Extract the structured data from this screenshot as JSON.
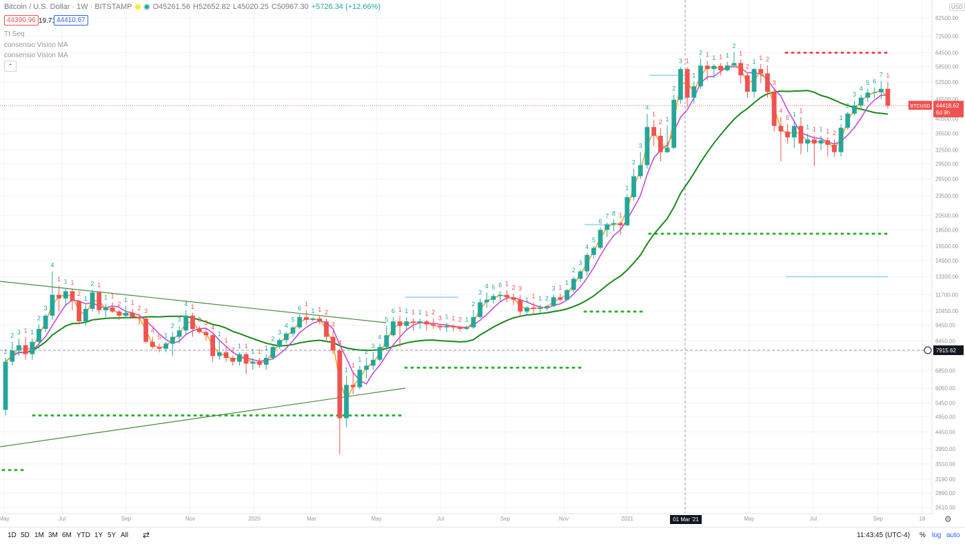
{
  "header": {
    "symbol_title": "Bitcoin / U.S. Dollar · 1W · BITSTAMP",
    "open": "O45261.56",
    "high": "H52652.82",
    "low": "L45020.25",
    "close": "C50967.30",
    "change": "+5726.34 (+12.66%)",
    "bid": "44390.96",
    "spread": "19.71",
    "ask": "44410.67",
    "indicators": [
      "TI Seq",
      "consensio Vision MA",
      "consensio Vision MA"
    ],
    "collapse_glyph": "⌃"
  },
  "price_scale": {
    "currency": "USD",
    "labels": [
      "82500.00",
      "72500.00",
      "64500.00",
      "58500.00",
      "52500.00",
      "46500.00",
      "40500.00",
      "36500.00",
      "32500.00",
      "29500.00",
      "26500.00",
      "23500.00",
      "20500.00",
      "18500.00",
      "16500.00",
      "14900.00",
      "13300.00",
      "11700.00",
      "10450.00",
      "9450.00",
      "8450.00",
      "7850.00",
      "6850.00",
      "6050.00",
      "5450.00",
      "4950.00",
      "4450.00",
      "3950.00",
      "3550.00",
      "3190.00",
      "2890.00",
      "2610.00"
    ],
    "last_price_badge": {
      "symbol": "BTCUSD",
      "price": "44418.62",
      "countdown": "6d 9h"
    },
    "crosshair_price": "7915.62"
  },
  "time_scale": {
    "labels": [
      "May",
      "Jul",
      "Sep",
      "Nov",
      "2020",
      "Mar",
      "May",
      "Jul",
      "Sep",
      "Nov",
      "2021",
      "May",
      "Jul",
      "Sep",
      "18"
    ],
    "crosshair_date": "01 Mar '21"
  },
  "toolbar": {
    "ranges": [
      "1D",
      "5D",
      "1M",
      "3M",
      "6M",
      "YTD",
      "1Y",
      "5Y",
      "All"
    ],
    "clock": "11:43:45 (UTC-4)",
    "percent": "%",
    "log": "log",
    "auto": "auto"
  },
  "chart_data": {
    "type": "candlestick",
    "symbol": "BTCUSD",
    "interval": "1W",
    "y_scale": "log",
    "ylim": [
      2500,
      90000
    ],
    "candles": [
      [
        5200,
        7500,
        5000,
        7300
      ],
      [
        7300,
        8400,
        7100,
        7900
      ],
      [
        7900,
        8600,
        7600,
        8200
      ],
      [
        8200,
        8700,
        7400,
        7700
      ],
      [
        7700,
        8600,
        7400,
        8400
      ],
      [
        8400,
        9500,
        8000,
        9200
      ],
      [
        9200,
        10200,
        9000,
        10100
      ],
      [
        10100,
        13800,
        9800,
        11700
      ],
      [
        11700,
        12500,
        10400,
        11400
      ],
      [
        11400,
        12300,
        10800,
        12000
      ],
      [
        12000,
        12200,
        10500,
        11200
      ],
      [
        11200,
        11300,
        9500,
        9700
      ],
      [
        9700,
        10900,
        9400,
        10600
      ],
      [
        10600,
        12100,
        10400,
        11900
      ],
      [
        11900,
        12000,
        10200,
        10500
      ],
      [
        10500,
        11000,
        10000,
        10700
      ],
      [
        10700,
        11100,
        10300,
        10400
      ],
      [
        10400,
        10500,
        9800,
        10100
      ],
      [
        10100,
        10800,
        9900,
        10300
      ],
      [
        10300,
        10600,
        9900,
        10000
      ],
      [
        10000,
        10200,
        9500,
        9900
      ],
      [
        9900,
        10000,
        8300,
        8400
      ],
      [
        8400,
        8700,
        8000,
        8100
      ],
      [
        8100,
        8300,
        7800,
        8000
      ],
      [
        8000,
        8400,
        7800,
        8300
      ],
      [
        8300,
        9000,
        7600,
        8700
      ],
      [
        8700,
        9400,
        8300,
        9100
      ],
      [
        9100,
        10500,
        8800,
        10100
      ],
      [
        10100,
        10300,
        8700,
        9200
      ],
      [
        9200,
        9400,
        8900,
        9000
      ],
      [
        9000,
        9200,
        8500,
        8800
      ],
      [
        8800,
        8900,
        7300,
        7600
      ],
      [
        7600,
        8500,
        7400,
        7800
      ],
      [
        7800,
        8100,
        7300,
        7500
      ],
      [
        7500,
        7600,
        7100,
        7300
      ],
      [
        7300,
        7800,
        7100,
        7700
      ],
      [
        7700,
        7800,
        6700,
        7200
      ],
      [
        7200,
        7500,
        6900,
        7300
      ],
      [
        7300,
        7500,
        7000,
        7150
      ],
      [
        7150,
        7700,
        6900,
        7500
      ],
      [
        7500,
        8200,
        7400,
        8100
      ],
      [
        8100,
        8600,
        8000,
        8500
      ],
      [
        8500,
        9000,
        8300,
        8900
      ],
      [
        8900,
        9400,
        8700,
        9300
      ],
      [
        9300,
        10200,
        9200,
        10000
      ],
      [
        10000,
        10500,
        9500,
        9800
      ],
      [
        9800,
        10000,
        9700,
        9900
      ],
      [
        9900,
        10100,
        9500,
        9700
      ],
      [
        9700,
        9900,
        8500,
        8700
      ],
      [
        8700,
        9100,
        7700,
        7900
      ],
      [
        7900,
        8000,
        3800,
        4900
      ],
      [
        4900,
        6600,
        4600,
        6200
      ],
      [
        6200,
        6800,
        5800,
        6100
      ],
      [
        6100,
        7100,
        6000,
        6900
      ],
      [
        6900,
        7500,
        6500,
        7100
      ],
      [
        7100,
        7800,
        6900,
        7400
      ],
      [
        7400,
        8300,
        7300,
        8100
      ],
      [
        8100,
        9400,
        8000,
        8800
      ],
      [
        8800,
        10000,
        8700,
        9700
      ],
      [
        9700,
        10100,
        8100,
        9400
      ],
      [
        9400,
        10000,
        9100,
        9700
      ],
      [
        9700,
        9900,
        9100,
        9600
      ],
      [
        9600,
        9900,
        9200,
        9700
      ],
      [
        9700,
        9800,
        9100,
        9500
      ],
      [
        9500,
        9900,
        9200,
        9400
      ],
      [
        9400,
        9500,
        9100,
        9300
      ],
      [
        9300,
        9600,
        9000,
        9400
      ],
      [
        9400,
        9500,
        9050,
        9300
      ],
      [
        9300,
        9400,
        9050,
        9200
      ],
      [
        9200,
        9400,
        9100,
        9300
      ],
      [
        9300,
        10500,
        9200,
        10000
      ],
      [
        10000,
        11400,
        9900,
        11100
      ],
      [
        11100,
        11900,
        10700,
        11300
      ],
      [
        11300,
        11800,
        11000,
        11600
      ],
      [
        11600,
        12000,
        11200,
        11700
      ],
      [
        11700,
        12100,
        11100,
        11500
      ],
      [
        11500,
        11800,
        10900,
        11300
      ],
      [
        11300,
        11700,
        10000,
        10400
      ],
      [
        10400,
        10800,
        10100,
        10700
      ],
      [
        10700,
        11100,
        10200,
        10600
      ],
      [
        10600,
        10900,
        10300,
        10700
      ],
      [
        10700,
        10900,
        10500,
        10800
      ],
      [
        10800,
        11700,
        10700,
        11500
      ],
      [
        11500,
        11800,
        11200,
        11300
      ],
      [
        11300,
        12200,
        11200,
        12100
      ],
      [
        12100,
        13300,
        11900,
        13100
      ],
      [
        13100,
        14000,
        12800,
        13800
      ],
      [
        13800,
        15700,
        13400,
        15500
      ],
      [
        15500,
        16500,
        15100,
        16300
      ],
      [
        16300,
        18800,
        16100,
        18500
      ],
      [
        18500,
        19500,
        17600,
        19200
      ],
      [
        19200,
        19900,
        18300,
        19400
      ],
      [
        19400,
        19600,
        17900,
        19100
      ],
      [
        19100,
        23800,
        19000,
        23300
      ],
      [
        23300,
        28500,
        22700,
        27000
      ],
      [
        27000,
        32000,
        26500,
        29200
      ],
      [
        29200,
        41900,
        28500,
        38200
      ],
      [
        38200,
        40100,
        33400,
        35900
      ],
      [
        35900,
        37900,
        30000,
        32000
      ],
      [
        32000,
        38600,
        31800,
        33000
      ],
      [
        33000,
        48000,
        32700,
        46300
      ],
      [
        46300,
        58300,
        45000,
        57500
      ],
      [
        57500,
        58300,
        44000,
        47000
      ],
      [
        47000,
        52600,
        45000,
        50900
      ],
      [
        50900,
        61700,
        50000,
        58900
      ],
      [
        58900,
        61000,
        53000,
        57500
      ],
      [
        57500,
        59500,
        54000,
        58800
      ],
      [
        58800,
        60000,
        55000,
        57000
      ],
      [
        57000,
        60500,
        56500,
        59000
      ],
      [
        59000,
        64800,
        58500,
        60000
      ],
      [
        60000,
        61500,
        52000,
        55000
      ],
      [
        55000,
        56000,
        47000,
        49000
      ],
      [
        49000,
        58000,
        47000,
        57500
      ],
      [
        57500,
        59500,
        52000,
        55800
      ],
      [
        55800,
        59000,
        47000,
        49000
      ],
      [
        49000,
        50000,
        37000,
        38500
      ],
      [
        38500,
        41000,
        30000,
        37000
      ],
      [
        37000,
        39000,
        34000,
        35500
      ],
      [
        35500,
        40000,
        33000,
        38500
      ],
      [
        38500,
        41000,
        31500,
        34000
      ],
      [
        34000,
        36500,
        32000,
        35000
      ],
      [
        35000,
        36000,
        29000,
        34000
      ],
      [
        34000,
        36000,
        32500,
        34800
      ],
      [
        34800,
        35500,
        31000,
        33700
      ],
      [
        33700,
        35000,
        31000,
        32000
      ],
      [
        32000,
        39000,
        31000,
        38000
      ],
      [
        38000,
        42500,
        37500,
        42000
      ],
      [
        42000,
        46000,
        41500,
        44500
      ],
      [
        44500,
        48000,
        43500,
        47000
      ],
      [
        47000,
        50000,
        45500,
        48700
      ],
      [
        48700,
        50500,
        47000,
        48800
      ],
      [
        48800,
        52900,
        46500,
        50000
      ],
      [
        50000,
        52600,
        43500,
        44400
      ]
    ],
    "annotations": {
      "resistance_levels": [
        64500,
        18000,
        10400,
        7000
      ],
      "support_levels": [
        5000,
        3400
      ],
      "highlight_levels": [
        55000,
        13300,
        11500
      ]
    }
  },
  "colors": {
    "up": "#26a69a",
    "down": "#ef5350",
    "ma_fast": "#f5a623",
    "ma_mid": "#c34dd4",
    "ma_slow": "#188a18",
    "trendline": "#4a8a3a",
    "level_green": "#2ab32a",
    "level_red": "#f0474b",
    "level_light": "#a8daf2"
  }
}
